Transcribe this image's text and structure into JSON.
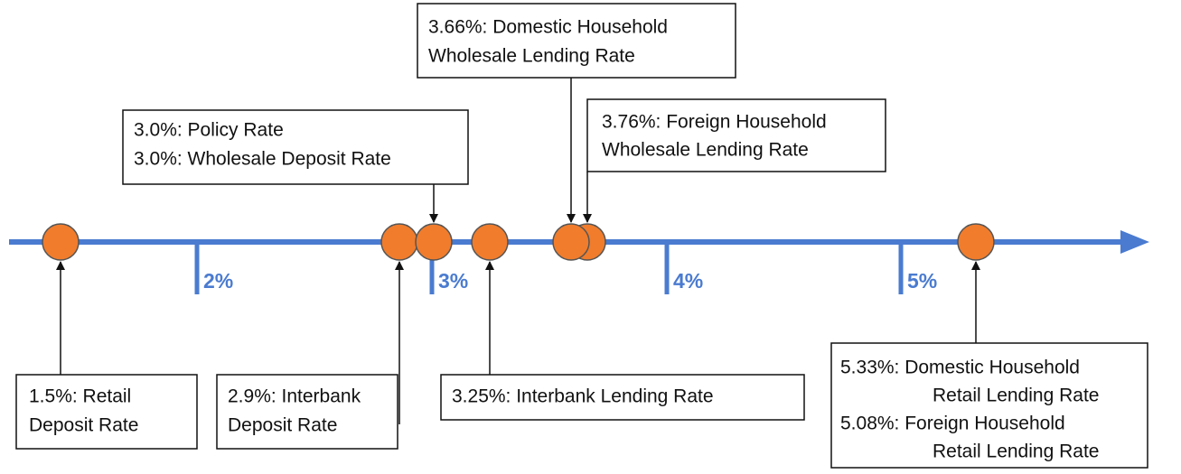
{
  "axis": {
    "tick_labels": [
      "2%",
      "3%",
      "4%",
      "5%"
    ]
  },
  "callouts": [
    {
      "lines": [
        "1.5%: Retail",
        "Deposit Rate"
      ]
    },
    {
      "lines": [
        "2.9%: Interbank",
        "Deposit Rate"
      ]
    },
    {
      "lines": [
        "3.25%: Interbank Lending Rate"
      ]
    },
    {
      "lines": [
        "3.0%: Policy Rate",
        "3.0%: Wholesale Deposit Rate"
      ]
    },
    {
      "lines": [
        "3.66%: Domestic Household",
        "Wholesale Lending Rate"
      ]
    },
    {
      "lines": [
        "3.76%: Foreign Household",
        "Wholesale Lending Rate"
      ]
    },
    {
      "lines": [
        "5.33%: Domestic Household",
        "Retail Lending Rate",
        "5.08%: Foreign Household",
        "Retail Lending Rate"
      ]
    }
  ]
}
